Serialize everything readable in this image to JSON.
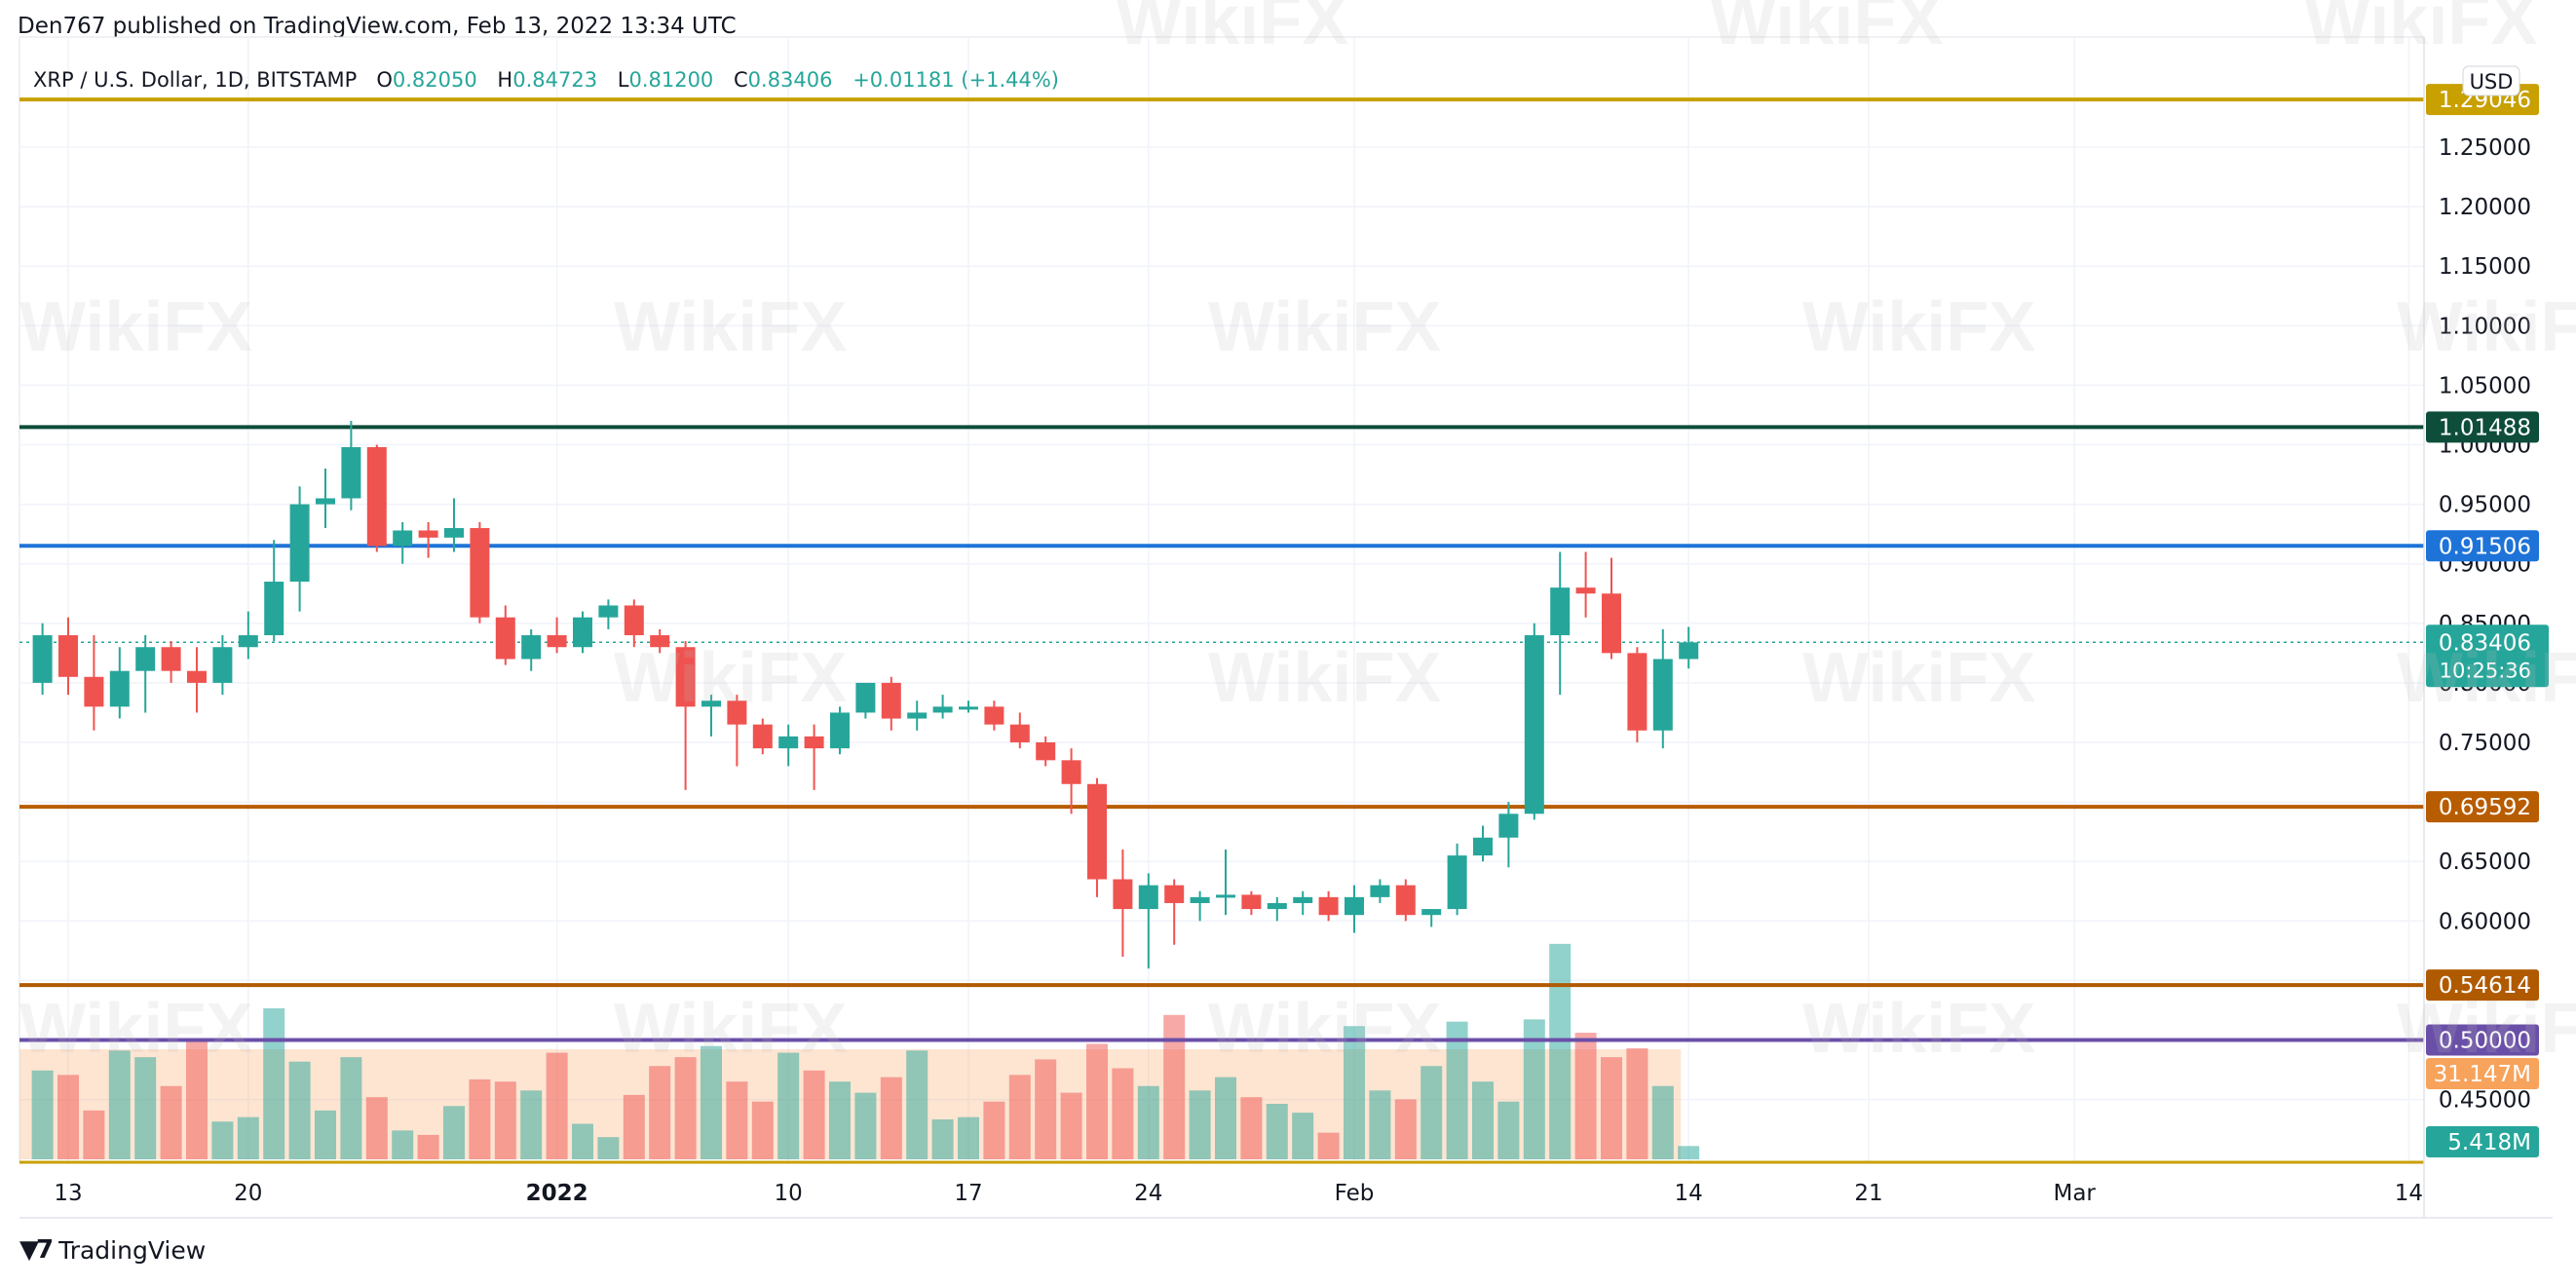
{
  "header": {
    "published": "Den767 published on TradingView.com, Feb 13, 2022 13:34 UTC"
  },
  "legend": {
    "symbol": "XRP / U.S. Dollar, 1D, BITSTAMP",
    "o_label": "O",
    "o": "0.82050",
    "h_label": "H",
    "h": "0.84723",
    "l_label": "L",
    "l": "0.81200",
    "c_label": "C",
    "c": "0.83406",
    "change": "+0.01181 (+1.44%)"
  },
  "currency": "USD",
  "footer": {
    "brand": "TradingView"
  },
  "watermark": "WikiFX",
  "colors": {
    "up": "#26a69a",
    "down": "#ef5350",
    "vol_up": "#26a69a",
    "vol_down": "#ef5350"
  },
  "chart_data": {
    "type": "candlestick",
    "price_axis": {
      "ticks": [
        "1.25000",
        "1.20000",
        "1.15000",
        "1.10000",
        "1.05000",
        "1.00000",
        "0.95000",
        "0.90000",
        "0.85000",
        "0.80000",
        "0.75000",
        "0.70000",
        "0.65000",
        "0.60000",
        "0.55000",
        "0.50000",
        "0.45000"
      ],
      "ylim": [
        0.4,
        1.3
      ]
    },
    "time_axis": {
      "ticks": [
        {
          "label": "13",
          "date": "2021-12-13"
        },
        {
          "label": "20",
          "date": "2021-12-20"
        },
        {
          "label": "2022",
          "date": "2022-01-01",
          "bold": true
        },
        {
          "label": "10",
          "date": "2022-01-10"
        },
        {
          "label": "17",
          "date": "2022-01-17"
        },
        {
          "label": "24",
          "date": "2022-01-24"
        },
        {
          "label": "Feb",
          "date": "2022-02-01"
        },
        {
          "label": "14",
          "date": "2022-02-14"
        },
        {
          "label": "21",
          "date": "2022-02-21"
        },
        {
          "label": "Mar",
          "date": "2022-03-01"
        },
        {
          "label": "14",
          "date": "2022-03-14"
        }
      ]
    },
    "horizontal_lines": [
      {
        "price": 1.29,
        "label": "1.29046",
        "color": "#c8a000"
      },
      {
        "price": 1.01488,
        "label": "1.01488",
        "color": "#0d4d3a"
      },
      {
        "price": 0.91506,
        "label": "0.91506",
        "color": "#1e73d8"
      },
      {
        "price": 0.69592,
        "label": "0.69592",
        "color": "#b85c00"
      },
      {
        "price": 0.54614,
        "label": "0.54614",
        "color": "#b05a00"
      },
      {
        "price": 0.5,
        "label": "0.50000",
        "color": "#6a4fa8"
      }
    ],
    "last_price": {
      "price": 0.83406,
      "label": "0.83406",
      "countdown": "10:25:36"
    },
    "volume_labels": [
      {
        "label": "31.147M",
        "color": "#f7a35c"
      },
      {
        "label": "5.418M",
        "color": "#26a69a"
      }
    ],
    "candles": [
      {
        "date": "2021-12-12",
        "o": 0.8,
        "h": 0.85,
        "l": 0.79,
        "c": 0.84,
        "v": 40
      },
      {
        "date": "2021-12-13",
        "o": 0.84,
        "h": 0.855,
        "l": 0.79,
        "c": 0.805,
        "v": 38
      },
      {
        "date": "2021-12-14",
        "o": 0.805,
        "h": 0.84,
        "l": 0.76,
        "c": 0.78,
        "v": 22
      },
      {
        "date": "2021-12-15",
        "o": 0.78,
        "h": 0.83,
        "l": 0.77,
        "c": 0.81,
        "v": 49
      },
      {
        "date": "2021-12-16",
        "o": 0.81,
        "h": 0.84,
        "l": 0.775,
        "c": 0.83,
        "v": 46
      },
      {
        "date": "2021-12-17",
        "o": 0.83,
        "h": 0.835,
        "l": 0.8,
        "c": 0.81,
        "v": 33
      },
      {
        "date": "2021-12-18",
        "o": 0.81,
        "h": 0.83,
        "l": 0.775,
        "c": 0.8,
        "v": 53
      },
      {
        "date": "2021-12-19",
        "o": 0.8,
        "h": 0.84,
        "l": 0.79,
        "c": 0.83,
        "v": 17
      },
      {
        "date": "2021-12-20",
        "o": 0.83,
        "h": 0.86,
        "l": 0.82,
        "c": 0.84,
        "v": 19
      },
      {
        "date": "2021-12-21",
        "o": 0.84,
        "h": 0.92,
        "l": 0.835,
        "c": 0.885,
        "v": 68
      },
      {
        "date": "2021-12-22",
        "o": 0.885,
        "h": 0.965,
        "l": 0.86,
        "c": 0.95,
        "v": 44
      },
      {
        "date": "2021-12-23",
        "o": 0.95,
        "h": 0.98,
        "l": 0.93,
        "c": 0.955,
        "v": 22
      },
      {
        "date": "2021-12-24",
        "o": 0.955,
        "h": 1.02,
        "l": 0.945,
        "c": 0.998,
        "v": 46
      },
      {
        "date": "2021-12-25",
        "o": 0.998,
        "h": 1.0,
        "l": 0.91,
        "c": 0.915,
        "v": 28
      },
      {
        "date": "2021-12-26",
        "o": 0.915,
        "h": 0.935,
        "l": 0.9,
        "c": 0.928,
        "v": 13
      },
      {
        "date": "2021-12-27",
        "o": 0.928,
        "h": 0.935,
        "l": 0.905,
        "c": 0.922,
        "v": 11
      },
      {
        "date": "2021-12-28",
        "o": 0.922,
        "h": 0.955,
        "l": 0.91,
        "c": 0.93,
        "v": 24
      },
      {
        "date": "2021-12-29",
        "o": 0.93,
        "h": 0.935,
        "l": 0.85,
        "c": 0.855,
        "v": 36
      },
      {
        "date": "2021-12-30",
        "o": 0.855,
        "h": 0.865,
        "l": 0.815,
        "c": 0.82,
        "v": 35
      },
      {
        "date": "2021-12-31",
        "o": 0.82,
        "h": 0.845,
        "l": 0.81,
        "c": 0.84,
        "v": 31
      },
      {
        "date": "2022-01-01",
        "o": 0.84,
        "h": 0.855,
        "l": 0.825,
        "c": 0.83,
        "v": 48
      },
      {
        "date": "2022-01-02",
        "o": 0.83,
        "h": 0.86,
        "l": 0.825,
        "c": 0.855,
        "v": 16
      },
      {
        "date": "2022-01-03",
        "o": 0.855,
        "h": 0.87,
        "l": 0.845,
        "c": 0.865,
        "v": 10
      },
      {
        "date": "2022-01-04",
        "o": 0.865,
        "h": 0.87,
        "l": 0.83,
        "c": 0.84,
        "v": 29
      },
      {
        "date": "2022-01-05",
        "o": 0.84,
        "h": 0.845,
        "l": 0.825,
        "c": 0.83,
        "v": 42
      },
      {
        "date": "2022-01-06",
        "o": 0.83,
        "h": 0.835,
        "l": 0.71,
        "c": 0.78,
        "v": 46
      },
      {
        "date": "2022-01-07",
        "o": 0.78,
        "h": 0.79,
        "l": 0.755,
        "c": 0.785,
        "v": 51
      },
      {
        "date": "2022-01-08",
        "o": 0.785,
        "h": 0.79,
        "l": 0.73,
        "c": 0.765,
        "v": 35
      },
      {
        "date": "2022-01-09",
        "o": 0.765,
        "h": 0.77,
        "l": 0.74,
        "c": 0.745,
        "v": 26
      },
      {
        "date": "2022-01-10",
        "o": 0.745,
        "h": 0.765,
        "l": 0.73,
        "c": 0.755,
        "v": 48
      },
      {
        "date": "2022-01-11",
        "o": 0.755,
        "h": 0.765,
        "l": 0.71,
        "c": 0.745,
        "v": 40
      },
      {
        "date": "2022-01-12",
        "o": 0.745,
        "h": 0.78,
        "l": 0.74,
        "c": 0.775,
        "v": 35
      },
      {
        "date": "2022-01-13",
        "o": 0.775,
        "h": 0.8,
        "l": 0.77,
        "c": 0.8,
        "v": 30
      },
      {
        "date": "2022-01-14",
        "o": 0.8,
        "h": 0.805,
        "l": 0.76,
        "c": 0.77,
        "v": 37
      },
      {
        "date": "2022-01-15",
        "o": 0.77,
        "h": 0.785,
        "l": 0.76,
        "c": 0.775,
        "v": 49
      },
      {
        "date": "2022-01-16",
        "o": 0.775,
        "h": 0.79,
        "l": 0.77,
        "c": 0.78,
        "v": 18
      },
      {
        "date": "2022-01-17",
        "o": 0.78,
        "h": 0.785,
        "l": 0.775,
        "c": 0.78,
        "v": 19
      },
      {
        "date": "2022-01-18",
        "o": 0.78,
        "h": 0.785,
        "l": 0.76,
        "c": 0.765,
        "v": 26
      },
      {
        "date": "2022-01-19",
        "o": 0.765,
        "h": 0.775,
        "l": 0.745,
        "c": 0.75,
        "v": 38
      },
      {
        "date": "2022-01-20",
        "o": 0.75,
        "h": 0.755,
        "l": 0.73,
        "c": 0.735,
        "v": 45
      },
      {
        "date": "2022-01-21",
        "o": 0.735,
        "h": 0.745,
        "l": 0.69,
        "c": 0.715,
        "v": 30
      },
      {
        "date": "2022-01-22",
        "o": 0.715,
        "h": 0.72,
        "l": 0.62,
        "c": 0.635,
        "v": 52
      },
      {
        "date": "2022-01-23",
        "o": 0.635,
        "h": 0.66,
        "l": 0.57,
        "c": 0.61,
        "v": 41
      },
      {
        "date": "2022-01-24",
        "o": 0.61,
        "h": 0.64,
        "l": 0.56,
        "c": 0.63,
        "v": 33
      },
      {
        "date": "2022-01-25",
        "o": 0.63,
        "h": 0.635,
        "l": 0.58,
        "c": 0.615,
        "v": 65
      },
      {
        "date": "2022-01-26",
        "o": 0.615,
        "h": 0.625,
        "l": 0.6,
        "c": 0.62,
        "v": 31
      },
      {
        "date": "2022-01-27",
        "o": 0.62,
        "h": 0.66,
        "l": 0.605,
        "c": 0.622,
        "v": 37
      },
      {
        "date": "2022-01-28",
        "o": 0.622,
        "h": 0.625,
        "l": 0.605,
        "c": 0.61,
        "v": 28
      },
      {
        "date": "2022-01-29",
        "o": 0.61,
        "h": 0.62,
        "l": 0.6,
        "c": 0.615,
        "v": 25
      },
      {
        "date": "2022-01-30",
        "o": 0.615,
        "h": 0.625,
        "l": 0.605,
        "c": 0.62,
        "v": 21
      },
      {
        "date": "2022-01-31",
        "o": 0.62,
        "h": 0.625,
        "l": 0.6,
        "c": 0.605,
        "v": 12
      },
      {
        "date": "2022-02-01",
        "o": 0.605,
        "h": 0.63,
        "l": 0.59,
        "c": 0.62,
        "v": 60
      },
      {
        "date": "2022-02-02",
        "o": 0.62,
        "h": 0.635,
        "l": 0.615,
        "c": 0.63,
        "v": 31
      },
      {
        "date": "2022-02-03",
        "o": 0.63,
        "h": 0.635,
        "l": 0.6,
        "c": 0.605,
        "v": 27
      },
      {
        "date": "2022-02-04",
        "o": 0.605,
        "h": 0.61,
        "l": 0.595,
        "c": 0.61,
        "v": 42
      },
      {
        "date": "2022-02-05",
        "o": 0.61,
        "h": 0.665,
        "l": 0.605,
        "c": 0.655,
        "v": 62
      },
      {
        "date": "2022-02-06",
        "o": 0.655,
        "h": 0.68,
        "l": 0.65,
        "c": 0.67,
        "v": 35
      },
      {
        "date": "2022-02-07",
        "o": 0.67,
        "h": 0.7,
        "l": 0.645,
        "c": 0.69,
        "v": 26
      },
      {
        "date": "2022-02-08",
        "o": 0.69,
        "h": 0.85,
        "l": 0.685,
        "c": 0.84,
        "v": 63
      },
      {
        "date": "2022-02-09",
        "o": 0.84,
        "h": 0.91,
        "l": 0.79,
        "c": 0.88,
        "v": 97
      },
      {
        "date": "2022-02-10",
        "o": 0.88,
        "h": 0.91,
        "l": 0.855,
        "c": 0.875,
        "v": 57
      },
      {
        "date": "2022-02-11",
        "o": 0.875,
        "h": 0.905,
        "l": 0.82,
        "c": 0.825,
        "v": 46
      },
      {
        "date": "2022-02-12",
        "o": 0.825,
        "h": 0.83,
        "l": 0.75,
        "c": 0.76,
        "v": 50
      },
      {
        "date": "2022-02-13",
        "o": 0.76,
        "h": 0.845,
        "l": 0.745,
        "c": 0.82,
        "v": 33
      },
      {
        "date": "2022-02-14",
        "o": 0.82,
        "h": 0.847,
        "l": 0.812,
        "c": 0.834,
        "v": 6
      }
    ]
  }
}
